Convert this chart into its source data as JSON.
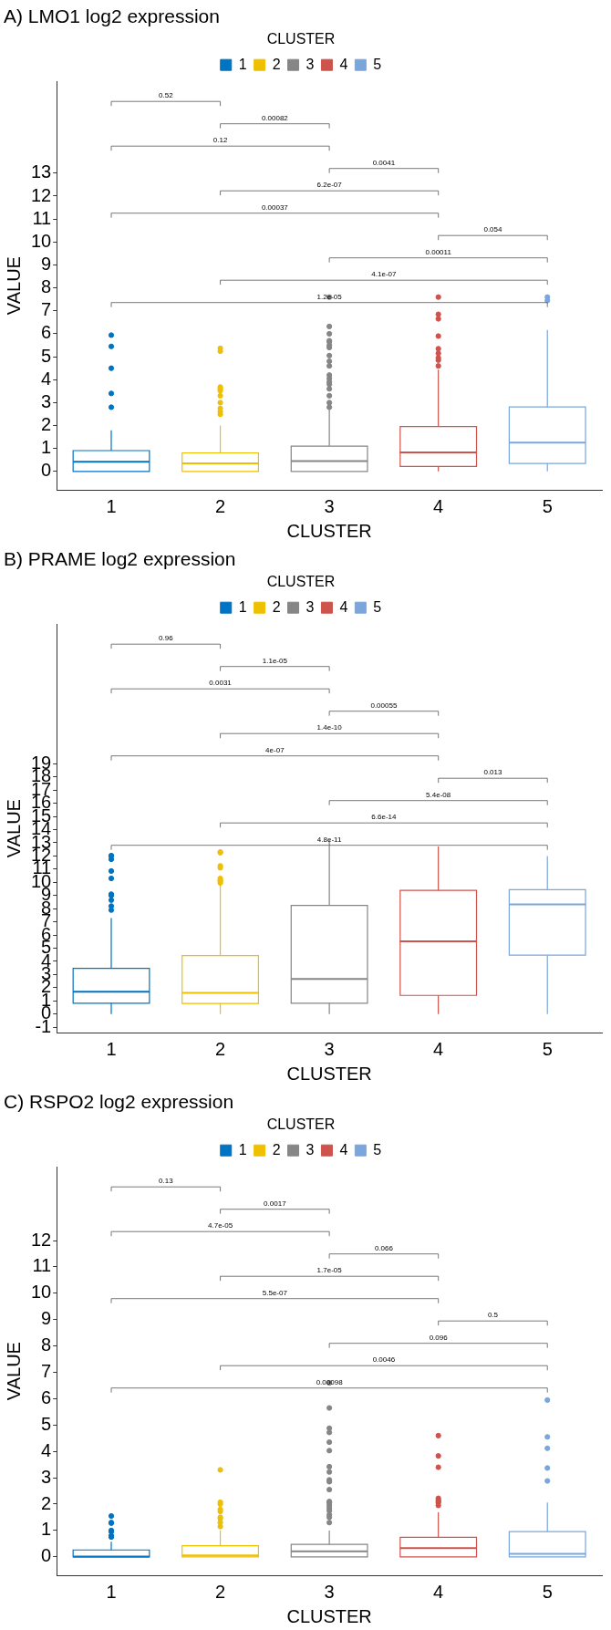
{
  "chart_data": [
    {
      "type": "box",
      "title": "A) LMO1 log2 expression",
      "xlabel": "CLUSTER",
      "ylabel": "VALUE",
      "legend_title": "CLUSTER",
      "legend": "top",
      "categories": [
        "1",
        "2",
        "3",
        "4",
        "5"
      ],
      "ylim": [
        -0.8,
        17
      ],
      "yticks": [
        0,
        1,
        2,
        3,
        4,
        5,
        6,
        7,
        8,
        9,
        10,
        11,
        12,
        13
      ],
      "series": [
        {
          "name": "1",
          "color": "#0073c2",
          "boxes": [
            {
              "low": 0,
              "q1": 0,
              "median": 0.42,
              "q3": 0.91,
              "high": 1.79,
              "outliers": [
                5.94,
                5.45,
                4.5,
                3.4,
                2.8
              ]
            },
            null,
            null,
            null,
            null
          ]
        },
        {
          "name": "2",
          "color": "#efc000",
          "boxes": [
            null,
            {
              "low": 0,
              "q1": 0,
              "median": 0.35,
              "q3": 0.81,
              "high": 2.0,
              "outliers": [
                5.37,
                5.24,
                3.68,
                3.6,
                3.52,
                3.3,
                3.0,
                2.75,
                2.6,
                2.49
              ]
            },
            null,
            null,
            null
          ]
        },
        {
          "name": "3",
          "color": "#868686",
          "boxes": [
            null,
            null,
            {
              "low": 0,
              "q1": 0,
              "median": 0.45,
              "q3": 1.1,
              "high": 2.73,
              "outliers": [
                7.6,
                6.32,
                6.0,
                5.7,
                5.65,
                5.5,
                5.4,
                5.05,
                4.8,
                4.6,
                4.2,
                4.05,
                3.9,
                3.8,
                3.6,
                3.3,
                3.0,
                2.8
              ]
            },
            null,
            null
          ]
        },
        {
          "name": "4",
          "color": "#cd534c",
          "boxes": [
            null,
            null,
            null,
            {
              "low": 0,
              "q1": 0.22,
              "median": 0.83,
              "q3": 1.96,
              "high": 4.44,
              "outliers": [
                7.6,
                6.85,
                6.65,
                5.9,
                5.35,
                5.15,
                4.95,
                4.85,
                4.6
              ]
            },
            null
          ]
        },
        {
          "name": "5",
          "color": "#7aa6dc",
          "boxes": [
            null,
            null,
            null,
            null,
            {
              "low": 0,
              "q1": 0.35,
              "median": 1.26,
              "q3": 2.81,
              "high": 6.17,
              "outliers": [
                7.6,
                7.45
              ]
            }
          ]
        }
      ],
      "annotations": [
        "0.52",
        "0.00082",
        "0.12",
        "0.0041",
        "6.2e-07",
        "0.00037",
        "0.054",
        "0.00011",
        "4.1e-07",
        "1.2e-05"
      ]
    },
    {
      "type": "box",
      "title": "B) PRAME log2 expression",
      "xlabel": "CLUSTER",
      "ylabel": "VALUE",
      "legend_title": "CLUSTER",
      "legend": "top",
      "categories": [
        "1",
        "2",
        "3",
        "4",
        "5"
      ],
      "ylim": [
        -1.4,
        29.6
      ],
      "yticks": [
        -1,
        0,
        1,
        2,
        3,
        4,
        5,
        6,
        7,
        8,
        9,
        10,
        11,
        12,
        13,
        14,
        15,
        16,
        17,
        18,
        19
      ],
      "series": [
        {
          "name": "1",
          "color": "#0073c2",
          "boxes": [
            {
              "low": 0,
              "q1": 0.83,
              "median": 1.69,
              "q3": 3.47,
              "high": 7.28,
              "outliers": [
                12.03,
                12.0,
                11.75,
                10.86,
                10.3,
                9.1,
                9.05,
                9.0,
                8.65,
                8.2,
                7.9
              ]
            },
            null,
            null,
            null,
            null
          ]
        },
        {
          "name": "2",
          "color": "#efc000",
          "boxes": [
            null,
            {
              "low": 0,
              "q1": 0.8,
              "median": 1.61,
              "q3": 4.44,
              "high": 9.78,
              "outliers": [
                12.3,
                12.25,
                11.25,
                11.1,
                10.3,
                10.15,
                10.1,
                9.95
              ]
            },
            null,
            null,
            null
          ]
        },
        {
          "name": "3",
          "color": "#868686",
          "boxes": [
            null,
            null,
            {
              "low": 0,
              "q1": 0.83,
              "median": 2.67,
              "q3": 8.25,
              "high": 13.2
            },
            null,
            null
          ]
        },
        {
          "name": "4",
          "color": "#cd534c",
          "boxes": [
            null,
            null,
            null,
            {
              "low": 0,
              "q1": 1.42,
              "median": 5.53,
              "q3": 9.39,
              "high": 12.72
            },
            null
          ]
        },
        {
          "name": "5",
          "color": "#7aa6dc",
          "boxes": [
            null,
            null,
            null,
            null,
            {
              "low": 0,
              "q1": 4.47,
              "median": 8.33,
              "q3": 9.44,
              "high": 12.0
            }
          ]
        }
      ],
      "annotations": [
        "0.96",
        "1.1e-05",
        "0.0031",
        "0.00055",
        "1.4e-10",
        "4e-07",
        "0.013",
        "5.4e-08",
        "6.6e-14",
        "4.8e-11"
      ]
    },
    {
      "type": "box",
      "title": "C) RSPO2 log2 expression",
      "xlabel": "CLUSTER",
      "ylabel": "VALUE",
      "legend_title": "CLUSTER",
      "legend": "top",
      "categories": [
        "1",
        "2",
        "3",
        "4",
        "5"
      ],
      "ylim": [
        -0.7,
        14.8
      ],
      "yticks": [
        0,
        1,
        2,
        3,
        4,
        5,
        6,
        7,
        8,
        9,
        10,
        11,
        12
      ],
      "series": [
        {
          "name": "1",
          "color": "#0073c2",
          "boxes": [
            {
              "low": 0,
              "q1": 0,
              "median": 0.01,
              "q3": 0.26,
              "high": 0.57,
              "outliers": [
                1.55,
                1.3,
                1.28,
                1.0,
                0.95,
                0.8,
                0.78,
                0.75
              ]
            },
            null,
            null,
            null,
            null
          ]
        },
        {
          "name": "2",
          "color": "#efc000",
          "boxes": [
            null,
            {
              "low": 0,
              "q1": 0,
              "median": 0.05,
              "q3": 0.42,
              "high": 1.0,
              "outliers": [
                3.3,
                2.07,
                2.0,
                1.8,
                1.72,
                1.5,
                1.45,
                1.3,
                1.15
              ]
            },
            null,
            null,
            null
          ]
        },
        {
          "name": "3",
          "color": "#868686",
          "boxes": [
            null,
            null,
            {
              "low": 0,
              "q1": 0,
              "median": 0.21,
              "q3": 0.47,
              "high": 1.0,
              "outliers": [
                6.6,
                5.65,
                4.88,
                4.72,
                4.35,
                4.03,
                3.42,
                3.22,
                2.92,
                2.85,
                2.55,
                2.1,
                2.07,
                2.05,
                1.95,
                1.85,
                1.75,
                1.6,
                1.5,
                1.3
              ]
            },
            null,
            null
          ]
        },
        {
          "name": "4",
          "color": "#cd534c",
          "boxes": [
            null,
            null,
            null,
            {
              "low": 0,
              "q1": 0,
              "median": 0.33,
              "q3": 0.74,
              "high": 1.7,
              "outliers": [
                4.6,
                3.83,
                3.4,
                2.22,
                2.15,
                2.1,
                2.05,
                1.95
              ]
            },
            null
          ]
        },
        {
          "name": "5",
          "color": "#7aa6dc",
          "boxes": [
            null,
            null,
            null,
            null,
            {
              "low": 0,
              "q1": 0,
              "median": 0.11,
              "q3": 0.96,
              "high": 2.06,
              "outliers": [
                5.95,
                4.55,
                4.12,
                3.37,
                2.88
              ]
            }
          ]
        }
      ],
      "annotations": [
        "0.13",
        "0.0017",
        "4.7e-05",
        "0.066",
        "1.7e-05",
        "5.5e-07",
        "0.5",
        "0.096",
        "0.0046",
        "0.00098"
      ]
    }
  ]
}
